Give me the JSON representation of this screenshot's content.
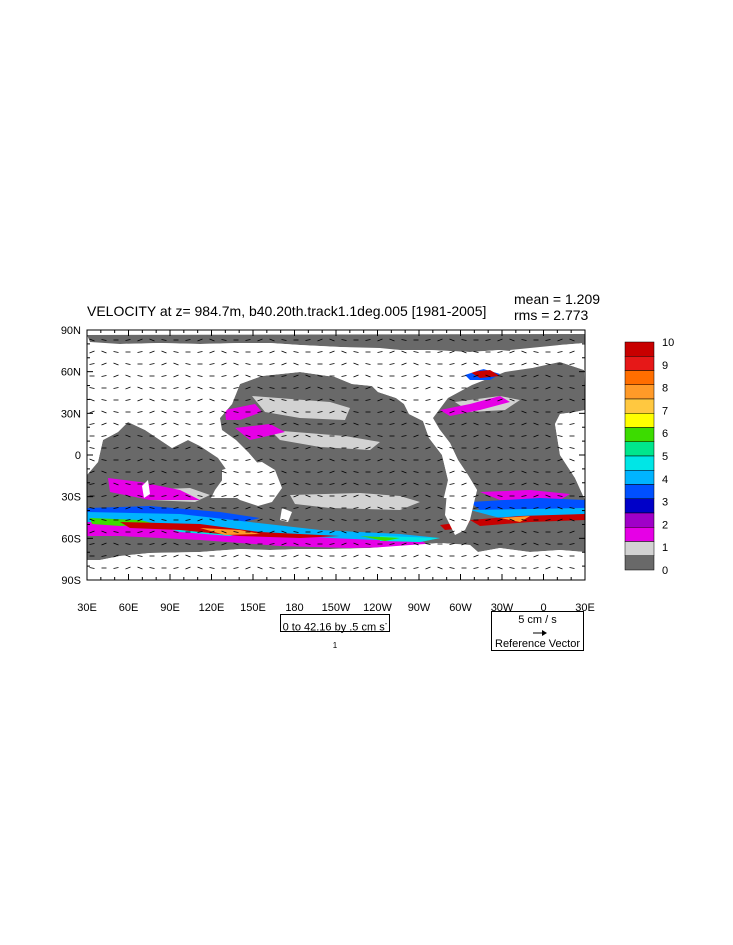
{
  "title": "VELOCITY at z= 984.7m, b40.20th.track1.1deg.005 [1981-2005]",
  "stats": {
    "mean": "mean = 1.209",
    "rms": "rms = 2.773"
  },
  "lat_ticks": [
    "90N",
    "60N",
    "30N",
    "0",
    "30S",
    "60S",
    "90S"
  ],
  "lon_ticks": [
    "30E",
    "60E",
    "90E",
    "120E",
    "150E",
    "180",
    "150W",
    "120W",
    "90W",
    "60W",
    "30W",
    "0",
    "30E"
  ],
  "contour_info": {
    "text": "0 to 42.16 by .5 cm s",
    "sup": "-1"
  },
  "ref_vector": {
    "speed": "5 cm / s",
    "label": "Reference Vector"
  },
  "colorbar": {
    "labels": [
      "10",
      "9",
      "8",
      "7",
      "6",
      "5",
      "4",
      "3",
      "2",
      "1",
      "0"
    ],
    "colors_top_to_bottom": [
      "#c80000",
      "#e61818",
      "#ff6e00",
      "#ff9a28",
      "#ffc840",
      "#ffff00",
      "#3cdc00",
      "#00e68c",
      "#00e6e6",
      "#00b4ff",
      "#0050ff",
      "#0000c8",
      "#a000c8",
      "#e600e6",
      "#d2d2d2",
      "#696969"
    ]
  },
  "chart_data": {
    "type": "heatmap",
    "title": "VELOCITY at z= 984.7m, b40.20th.track1.1deg.005 [1981-2005]",
    "variable": "VELOCITY",
    "units": "cm s-1",
    "depth": "984.7m",
    "mean": 1.209,
    "rms": 2.773,
    "value_range": [
      0,
      42.16
    ],
    "contour_interval": 0.5,
    "lat_range": [
      -90,
      90
    ],
    "lon_range": [
      30,
      390
    ],
    "colorbar_levels": [
      0,
      1,
      2,
      3,
      4,
      5,
      6,
      7,
      8,
      9,
      10
    ],
    "reference_vector_cm_s": 5
  }
}
